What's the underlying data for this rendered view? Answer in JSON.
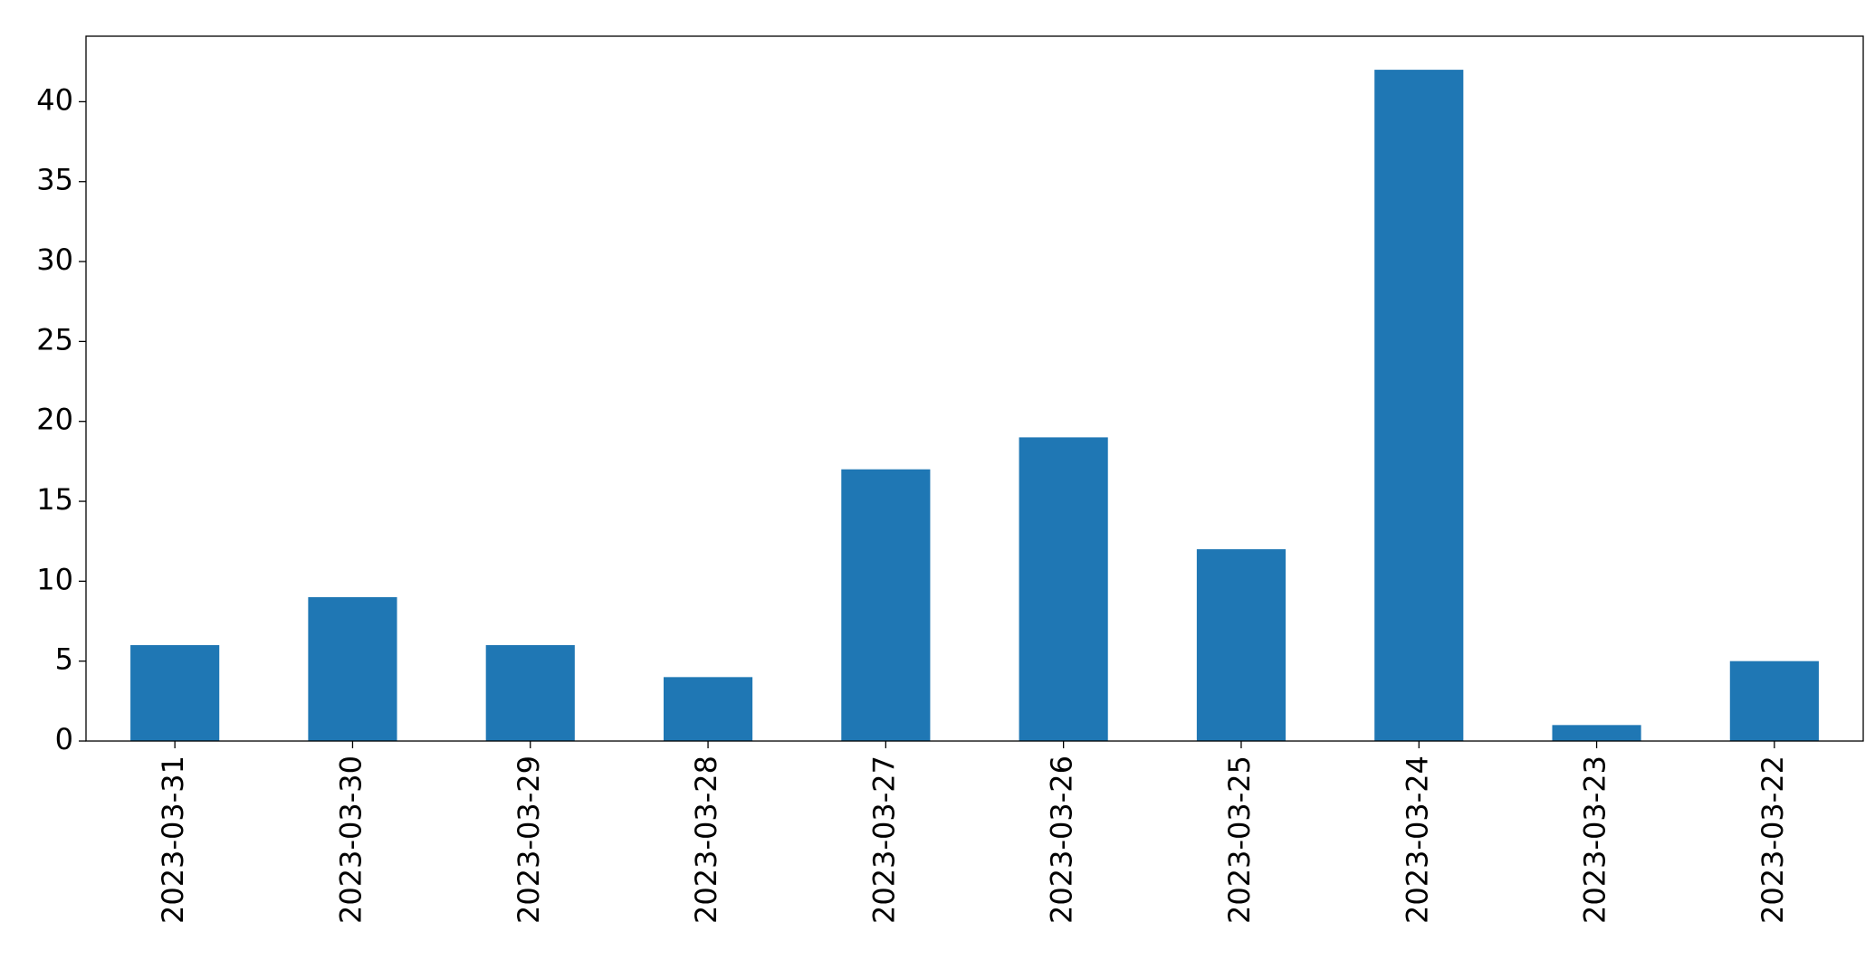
{
  "chart_data": {
    "type": "bar",
    "categories": [
      "2023-03-31",
      "2023-03-30",
      "2023-03-29",
      "2023-03-28",
      "2023-03-27",
      "2023-03-26",
      "2023-03-25",
      "2023-03-24",
      "2023-03-23",
      "2023-03-22"
    ],
    "values": [
      6,
      9,
      6,
      4,
      17,
      19,
      12,
      42,
      1,
      5
    ],
    "color": "#1f77b4",
    "ylim": [
      0,
      44.1
    ],
    "yticks": [
      0,
      5,
      10,
      15,
      20,
      25,
      30,
      35,
      40
    ],
    "grid": false
  }
}
